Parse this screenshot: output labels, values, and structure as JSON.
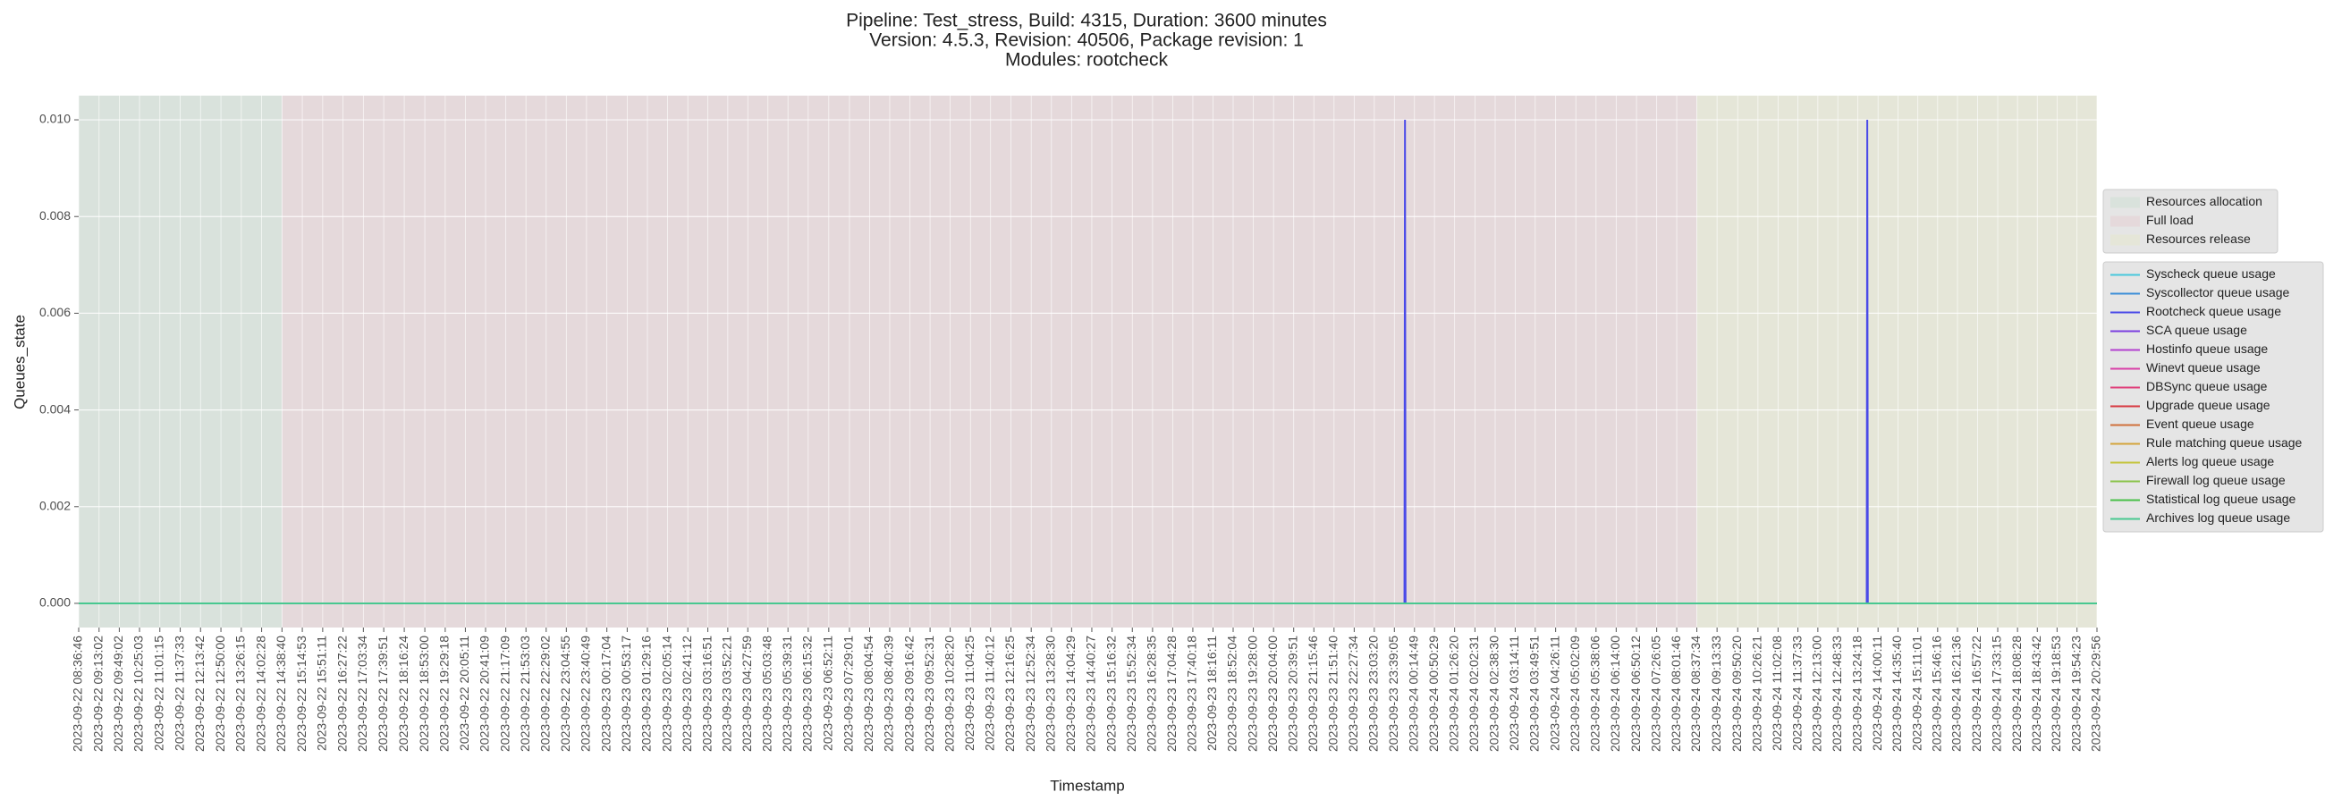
{
  "chart_data": {
    "type": "line",
    "title": [
      "Pipeline: Test_stress, Build: 4315, Duration: 3600 minutes",
      "Version: 4.5.3, Revision: 40506, Package revision: 1",
      "Modules: rootcheck"
    ],
    "xlabel": "Timestamp",
    "ylabel": "Queues_state",
    "x": [
      "2023-09-22 08:36:46",
      "2023-09-23 23:57:00",
      "2023-09-23 23:58:00",
      "2023-09-23 23:59:00",
      "2023-09-24 13:40:00",
      "2023-09-24 13:41:00",
      "2023-09-24 13:42:00",
      "2023-09-24 20:29:56"
    ],
    "series": [
      {
        "name": "Syscheck queue usage",
        "color": "#48c8dc",
        "values": [
          0,
          0,
          0,
          0,
          0,
          0,
          0,
          0
        ]
      },
      {
        "name": "Syscollector queue usage",
        "color": "#3d8fd8",
        "values": [
          0,
          0,
          0,
          0,
          0,
          0,
          0,
          0
        ]
      },
      {
        "name": "Rootcheck queue usage",
        "color": "#4a4ae8",
        "values": [
          0,
          0,
          0.01,
          0,
          0,
          0.01,
          0,
          0
        ]
      },
      {
        "name": "SCA queue usage",
        "color": "#7b3fe0",
        "values": [
          0,
          0,
          0,
          0,
          0,
          0,
          0,
          0
        ]
      },
      {
        "name": "Hostinfo queue usage",
        "color": "#b23fd0",
        "values": [
          0,
          0,
          0,
          0,
          0,
          0,
          0,
          0
        ]
      },
      {
        "name": "Winevt queue usage",
        "color": "#d83fa8",
        "values": [
          0,
          0,
          0,
          0,
          0,
          0,
          0,
          0
        ]
      },
      {
        "name": "DBSync queue usage",
        "color": "#e0407a",
        "values": [
          0,
          0,
          0,
          0,
          0,
          0,
          0,
          0
        ]
      },
      {
        "name": "Upgrade queue usage",
        "color": "#d8383f",
        "values": [
          0,
          0,
          0,
          0,
          0,
          0,
          0,
          0
        ]
      },
      {
        "name": "Event queue usage",
        "color": "#d0703a",
        "values": [
          0,
          0,
          0,
          0,
          0,
          0,
          0,
          0
        ]
      },
      {
        "name": "Rule matching queue usage",
        "color": "#d4a43a",
        "values": [
          0,
          0,
          0,
          0,
          0,
          0,
          0,
          0
        ]
      },
      {
        "name": "Alerts log queue usage",
        "color": "#c4c43a",
        "values": [
          0,
          0,
          0,
          0,
          0,
          0,
          0,
          0
        ]
      },
      {
        "name": "Firewall log queue usage",
        "color": "#8ac44a",
        "values": [
          0,
          0,
          0,
          0,
          0,
          0,
          0,
          0
        ]
      },
      {
        "name": "Statistical log queue usage",
        "color": "#48c048",
        "values": [
          0,
          0,
          0,
          0,
          0,
          0,
          0,
          0
        ]
      },
      {
        "name": "Archives log queue usage",
        "color": "#48c890",
        "values": [
          0,
          0,
          0,
          0,
          0,
          0,
          0,
          0
        ]
      }
    ],
    "phases": [
      {
        "name": "Resources allocation",
        "start": "2023-09-22 08:36:46",
        "end": "2023-09-22 14:38:40",
        "color": "#d9e2dc"
      },
      {
        "name": "Full load",
        "start": "2023-09-22 14:38:40",
        "end": "2023-09-24 08:37:34",
        "color": "#e5d9db"
      },
      {
        "name": "Resources release",
        "start": "2023-09-24 08:37:34",
        "end": "2023-09-24 20:29:56",
        "color": "#e5e6d8"
      }
    ],
    "xlim": [
      "2023-09-22 08:36:46",
      "2023-09-24 20:29:56"
    ],
    "xticks": [
      "2023-09-22 08:36:46",
      "2023-09-22 09:13:02",
      "2023-09-22 09:49:02",
      "2023-09-22 10:25:03",
      "2023-09-22 11:01:15",
      "2023-09-22 11:37:33",
      "2023-09-22 12:13:42",
      "2023-09-22 12:50:00",
      "2023-09-22 13:26:15",
      "2023-09-22 14:02:28",
      "2023-09-22 14:38:40",
      "2023-09-22 15:14:53",
      "2023-09-22 15:51:11",
      "2023-09-22 16:27:22",
      "2023-09-22 17:03:34",
      "2023-09-22 17:39:51",
      "2023-09-22 18:16:24",
      "2023-09-22 18:53:00",
      "2023-09-22 19:29:18",
      "2023-09-22 20:05:11",
      "2023-09-22 20:41:09",
      "2023-09-22 21:17:09",
      "2023-09-22 21:53:03",
      "2023-09-22 22:29:02",
      "2023-09-22 23:04:55",
      "2023-09-22 23:40:49",
      "2023-09-23 00:17:04",
      "2023-09-23 00:53:17",
      "2023-09-23 01:29:16",
      "2023-09-23 02:05:14",
      "2023-09-23 02:41:12",
      "2023-09-23 03:16:51",
      "2023-09-23 03:52:21",
      "2023-09-23 04:27:59",
      "2023-09-23 05:03:48",
      "2023-09-23 05:39:31",
      "2023-09-23 06:15:32",
      "2023-09-23 06:52:11",
      "2023-09-23 07:29:01",
      "2023-09-23 08:04:54",
      "2023-09-23 08:40:39",
      "2023-09-23 09:16:42",
      "2023-09-23 09:52:31",
      "2023-09-23 10:28:20",
      "2023-09-23 11:04:25",
      "2023-09-23 11:40:12",
      "2023-09-23 12:16:25",
      "2023-09-23 12:52:34",
      "2023-09-23 13:28:30",
      "2023-09-23 14:04:29",
      "2023-09-23 14:40:27",
      "2023-09-23 15:16:32",
      "2023-09-23 15:52:34",
      "2023-09-23 16:28:35",
      "2023-09-23 17:04:28",
      "2023-09-23 17:40:18",
      "2023-09-23 18:16:11",
      "2023-09-23 18:52:04",
      "2023-09-23 19:28:00",
      "2023-09-23 20:04:00",
      "2023-09-23 20:39:51",
      "2023-09-23 21:15:46",
      "2023-09-23 21:51:40",
      "2023-09-23 22:27:34",
      "2023-09-23 23:03:20",
      "2023-09-23 23:39:05",
      "2023-09-24 00:14:49",
      "2023-09-24 00:50:29",
      "2023-09-24 01:26:20",
      "2023-09-24 02:02:31",
      "2023-09-24 02:38:30",
      "2023-09-24 03:14:11",
      "2023-09-24 03:49:51",
      "2023-09-24 04:26:11",
      "2023-09-24 05:02:09",
      "2023-09-24 05:38:06",
      "2023-09-24 06:14:00",
      "2023-09-24 06:50:12",
      "2023-09-24 07:26:05",
      "2023-09-24 08:01:46",
      "2023-09-24 08:37:34",
      "2023-09-24 09:13:33",
      "2023-09-24 09:50:20",
      "2023-09-24 10:26:21",
      "2023-09-24 11:02:08",
      "2023-09-24 11:37:33",
      "2023-09-24 12:13:00",
      "2023-09-24 12:48:33",
      "2023-09-24 13:24:18",
      "2023-09-24 14:00:11",
      "2023-09-24 14:35:40",
      "2023-09-24 15:11:01",
      "2023-09-24 15:46:16",
      "2023-09-24 16:21:36",
      "2023-09-24 16:57:22",
      "2023-09-24 17:33:15",
      "2023-09-24 18:08:28",
      "2023-09-24 18:43:42",
      "2023-09-24 19:18:53",
      "2023-09-24 19:54:23",
      "2023-09-24 20:29:56"
    ],
    "ylim": [
      -0.0005,
      0.0105
    ],
    "yticks": [
      {
        "value": 0,
        "label": "0.000"
      },
      {
        "value": 0.002,
        "label": "0.002"
      },
      {
        "value": 0.004,
        "label": "0.004"
      },
      {
        "value": 0.006,
        "label": "0.006"
      },
      {
        "value": 0.008,
        "label": "0.008"
      },
      {
        "value": 0.01,
        "label": "0.010"
      }
    ],
    "grid": true,
    "legend": "right"
  }
}
